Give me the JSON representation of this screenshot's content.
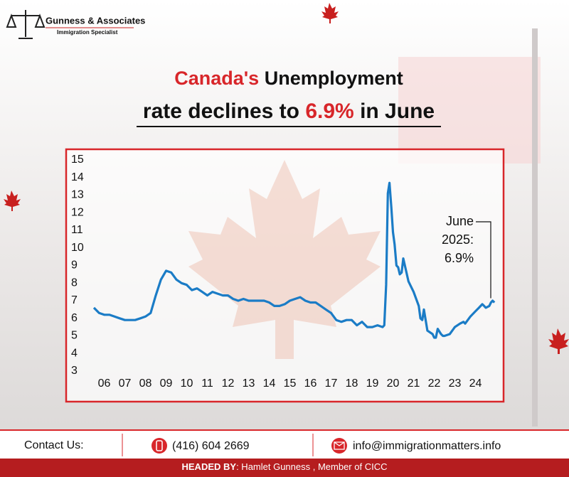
{
  "header": {
    "company": "Gunness & Associates",
    "tagline": "Immigration Specialist"
  },
  "headline": {
    "line1": [
      "Canada's",
      "Unemployment"
    ],
    "line2": [
      "rate declines to",
      "6.9%",
      "in June"
    ]
  },
  "chart_data": {
    "type": "line",
    "color": "#1b7cc6",
    "x": [
      2006,
      2006.25,
      2006.5,
      2006.75,
      2007,
      2007.25,
      2007.5,
      2007.75,
      2008,
      2008.25,
      2008.5,
      2008.75,
      2009,
      2009.25,
      2009.5,
      2009.75,
      2010,
      2010.25,
      2010.5,
      2010.75,
      2011,
      2011.25,
      2011.5,
      2011.75,
      2012,
      2012.25,
      2012.5,
      2012.75,
      2013,
      2013.25,
      2013.5,
      2013.75,
      2014,
      2014.25,
      2014.5,
      2014.75,
      2015,
      2015.25,
      2015.5,
      2015.75,
      2016,
      2016.25,
      2016.5,
      2016.75,
      2017,
      2017.25,
      2017.5,
      2017.75,
      2018,
      2018.25,
      2018.5,
      2018.75,
      2019,
      2019.25,
      2019.5,
      2019.75,
      2020,
      2020.08,
      2020.17,
      2020.25,
      2020.33,
      2020.42,
      2020.5,
      2020.58,
      2020.67,
      2020.75,
      2020.83,
      2020.92,
      2021,
      2021.25,
      2021.5,
      2021.75,
      2021.83,
      2021.92,
      2022,
      2022.17,
      2022.42,
      2022.5,
      2022.58,
      2022.67,
      2022.83,
      2022.92,
      2023,
      2023.25,
      2023.5,
      2023.75,
      2023.92,
      2024,
      2024.25,
      2024.5,
      2024.67,
      2024.83,
      2024.92,
      2025,
      2025.17,
      2025.25,
      2025.33,
      2025.42
    ],
    "values": [
      6.6,
      6.3,
      6.2,
      6.2,
      6.1,
      6.0,
      5.9,
      5.9,
      5.9,
      6.0,
      6.1,
      6.3,
      7.3,
      8.2,
      8.7,
      8.6,
      8.2,
      8.0,
      7.9,
      7.6,
      7.7,
      7.5,
      7.3,
      7.5,
      7.4,
      7.3,
      7.3,
      7.1,
      7.0,
      7.1,
      7.0,
      7.0,
      7.0,
      7.0,
      6.9,
      6.7,
      6.7,
      6.8,
      7.0,
      7.1,
      7.2,
      7.0,
      6.9,
      6.9,
      6.7,
      6.5,
      6.3,
      5.9,
      5.8,
      5.9,
      5.9,
      5.6,
      5.8,
      5.5,
      5.5,
      5.6,
      5.5,
      5.6,
      7.9,
      13.1,
      13.7,
      12.3,
      10.9,
      10.2,
      9.0,
      8.9,
      8.5,
      8.6,
      9.4,
      8.1,
      7.5,
      6.7,
      6.0,
      5.9,
      6.5,
      5.3,
      5.1,
      4.9,
      4.9,
      5.4,
      5.1,
      5.0,
      5.0,
      5.1,
      5.5,
      5.7,
      5.8,
      5.7,
      6.1,
      6.4,
      6.6,
      6.8,
      6.7,
      6.6,
      6.7,
      6.9,
      7.0,
      6.9
    ],
    "xlim": [
      2006,
      2025.5
    ],
    "xticks": [
      {
        "value": 2006.5,
        "label": "06"
      },
      {
        "value": 2007.5,
        "label": "07"
      },
      {
        "value": 2008.5,
        "label": "08"
      },
      {
        "value": 2009.5,
        "label": "09"
      },
      {
        "value": 2010.5,
        "label": "10"
      },
      {
        "value": 2011.5,
        "label": "11"
      },
      {
        "value": 2012.5,
        "label": "12"
      },
      {
        "value": 2013.5,
        "label": "13"
      },
      {
        "value": 2014.5,
        "label": "14"
      },
      {
        "value": 2015.5,
        "label": "15"
      },
      {
        "value": 2016.5,
        "label": "16"
      },
      {
        "value": 2017.5,
        "label": "17"
      },
      {
        "value": 2018.5,
        "label": "18"
      },
      {
        "value": 2019.5,
        "label": "19"
      },
      {
        "value": 2020.5,
        "label": "20"
      },
      {
        "value": 2021.5,
        "label": "21"
      },
      {
        "value": 2022.5,
        "label": "22"
      },
      {
        "value": 2023.5,
        "label": "23"
      },
      {
        "value": 2024.5,
        "label": "24"
      }
    ],
    "ylim": [
      3,
      15
    ],
    "yticks": [
      3,
      4,
      5,
      6,
      7,
      8,
      9,
      10,
      11,
      12,
      13,
      14,
      15
    ],
    "grid": false,
    "annotation": [
      "June",
      "2025:",
      "6.9%"
    ]
  },
  "footer": {
    "contact_label": "Contact Us:",
    "phone": "(416) 604 2669",
    "email": "info@immigrationmatters.info",
    "headed_label": "HEADED BY",
    "headed_text": ": Hamlet Gunness , Member of CICC"
  }
}
